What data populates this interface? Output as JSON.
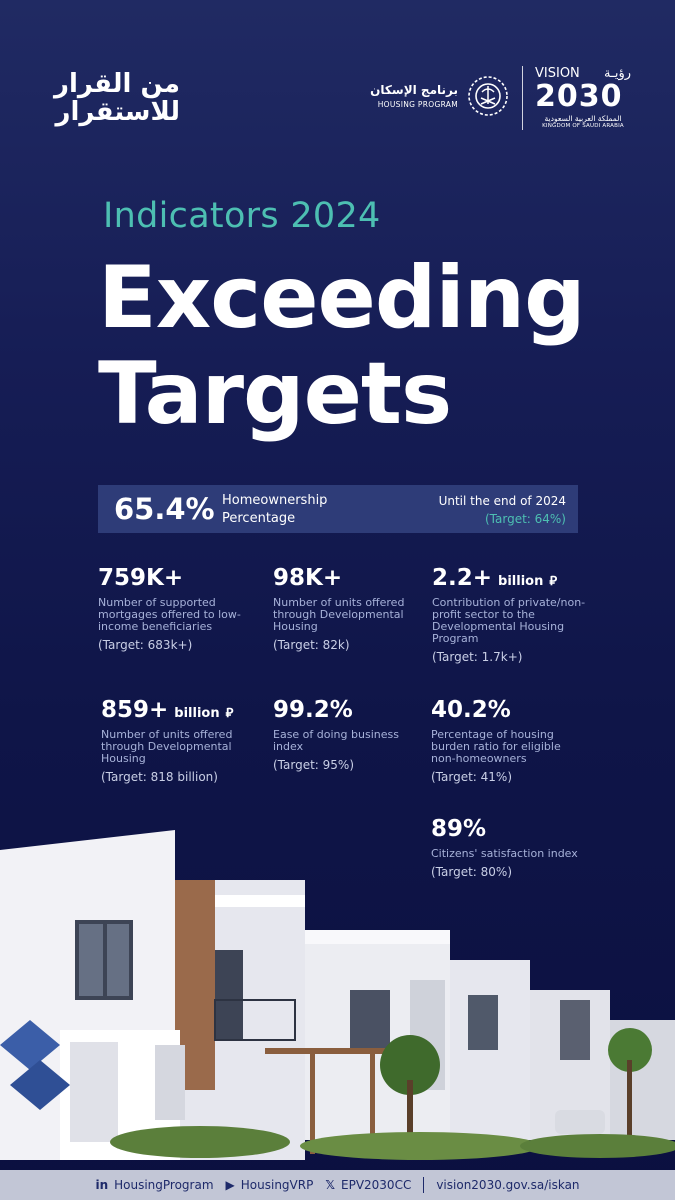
{
  "header": {
    "campaign_logo": "من القرار للاستقرار",
    "housing_program_ar": "برنامج الإسكان",
    "housing_program_en": "HOUSING PROGRAM",
    "vision_en": "VISION",
    "vision_ar": "رؤيـة",
    "vision_year": "2030",
    "kingdom_ar": "المملكة العربية السعودية",
    "kingdom_en": "KINGDOM OF SAUDI ARABIA"
  },
  "title": {
    "subtitle": "Indicators 2024",
    "line1": "Exceeding",
    "line2": "Targets"
  },
  "banner": {
    "value": "65.4%",
    "label_line1": "Homeownership",
    "label_line2": "Percentage",
    "period": "Until the end of 2024",
    "target": "(Target: 64%)"
  },
  "stats": [
    {
      "value": "759K+",
      "unit": "",
      "desc": "Number of supported mortgages offered to low-income beneficiaries",
      "target": "(Target: 683k+)"
    },
    {
      "value": "98K+",
      "unit": "",
      "desc": "Number of units offered through Developmental Housing",
      "target": "(Target: 82k)"
    },
    {
      "value": "2.2+",
      "unit": "billion",
      "desc": "Contribution of private/non-profit sector to the Developmental Housing Program",
      "target": "(Target: 1.7k+)"
    },
    {
      "value": "859+",
      "unit": "billion",
      "desc": "Number of units offered through Developmental Housing",
      "target": "(Target: 818 billion)"
    },
    {
      "value": "99.2%",
      "unit": "",
      "desc": "Ease of doing business index",
      "target": "(Target: 95%)"
    },
    {
      "value": "40.2%",
      "unit": "",
      "desc": "Percentage of housing burden ratio for eligible non-homeowners",
      "target": "(Target: 41%)"
    },
    {
      "value": "89%",
      "unit": "",
      "desc": "Citizens' satisfaction index",
      "target": "(Target: 80%)"
    }
  ],
  "footer": {
    "linkedin": "HousingProgram",
    "youtube": "HousingVRP",
    "x": "EPV2030CC",
    "website": "vision2030.gov.sa/iskan"
  },
  "icons": {
    "currency": "riyal-icon",
    "linkedin": "linkedin-icon",
    "youtube": "youtube-icon",
    "x": "x-icon"
  }
}
